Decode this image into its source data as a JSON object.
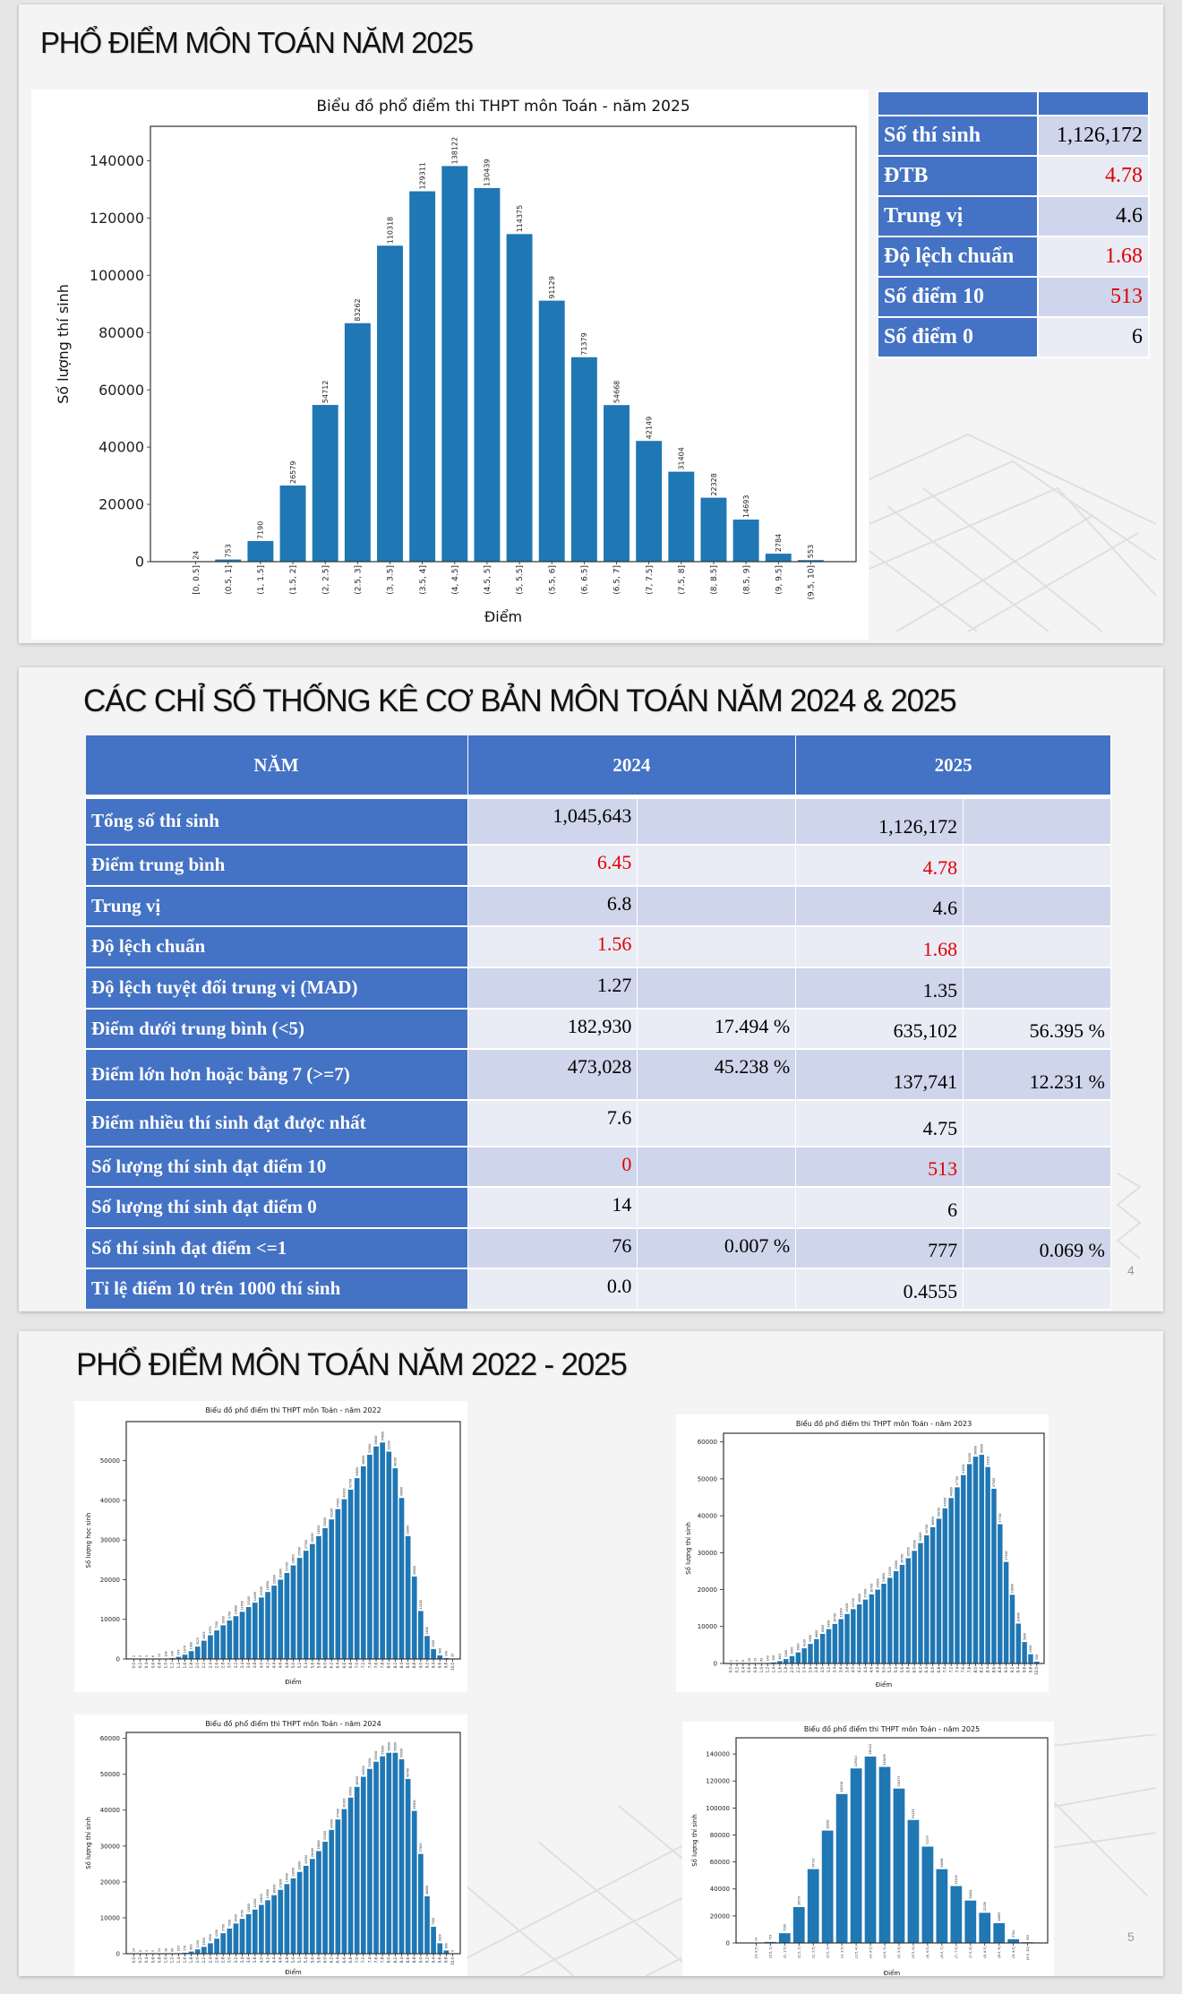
{
  "slide1": {
    "title": "PHỔ ĐIỂM MÔN TOÁN NĂM 2025",
    "stats": [
      {
        "label": "Số thí sinh",
        "value": "1,126,172",
        "highlight": false
      },
      {
        "label": "ĐTB",
        "value": "4.78",
        "highlight": true
      },
      {
        "label": "Trung vị",
        "value": "4.6",
        "highlight": false
      },
      {
        "label": "Độ lệch chuẩn",
        "value": "1.68",
        "highlight": true
      },
      {
        "label": "Số điểm 10",
        "value": "513",
        "highlight": true
      },
      {
        "label": "Số điểm 0",
        "value": "6",
        "highlight": false
      }
    ]
  },
  "slide2": {
    "title": "CÁC CHỈ SỐ THỐNG KÊ CƠ BẢN MÔN TOÁN NĂM 2024 & 2025",
    "headers": [
      "NĂM",
      "2024",
      "2025"
    ],
    "rows": [
      {
        "label": "Tổng số thí sinh",
        "v2024": "1,045,643",
        "p2024": "",
        "v2025": "1,126,172",
        "p2025": "",
        "red": false
      },
      {
        "label": "Điểm trung bình",
        "v2024": "6.45",
        "p2024": "",
        "v2025": "4.78",
        "p2025": "",
        "red": true
      },
      {
        "label": "Trung vị",
        "v2024": "6.8",
        "p2024": "",
        "v2025": "4.6",
        "p2025": "",
        "red": false
      },
      {
        "label": "Độ lệch chuẩn",
        "v2024": "1.56",
        "p2024": "",
        "v2025": "1.68",
        "p2025": "",
        "red": true
      },
      {
        "label": "Độ lệch tuyệt đối trung vị (MAD)",
        "v2024": "1.27",
        "p2024": "",
        "v2025": "1.35",
        "p2025": "",
        "red": false
      },
      {
        "label": "Điểm dưới trung bình (<5)",
        "v2024": "182,930",
        "p2024": "17.494 %",
        "v2025": "635,102",
        "p2025": "56.395 %",
        "red": false
      },
      {
        "label": "Điểm lớn hơn hoặc bằng 7 (>=7)",
        "v2024": "473,028",
        "p2024": "45.238 %",
        "v2025": "137,741",
        "p2025": "12.231 %",
        "red": false
      },
      {
        "label": "Điểm nhiều thí sinh đạt được nhất",
        "v2024": "7.6",
        "p2024": "",
        "v2025": "4.75",
        "p2025": "",
        "red": false
      },
      {
        "label": "Số lượng thí sinh đạt điểm 10",
        "v2024": "0",
        "p2024": "",
        "v2025": "513",
        "p2025": "",
        "red": true
      },
      {
        "label": "Số lượng thí sinh đạt điểm 0",
        "v2024": "14",
        "p2024": "",
        "v2025": "6",
        "p2025": "",
        "red": false
      },
      {
        "label": "Số thí sinh đạt điểm <=1",
        "v2024": "76",
        "p2024": "0.007 %",
        "v2025": "777",
        "p2025": "0.069 %",
        "red": false
      },
      {
        "label": "Tỉ lệ điểm 10 trên 1000 thí sinh",
        "v2024": "0.0",
        "p2024": "",
        "v2025": "0.4555",
        "p2025": "",
        "red": false
      }
    ],
    "page_number": "4"
  },
  "slide3": {
    "title": "PHỔ ĐIỂM MÔN TOÁN NĂM 2022 - 2025",
    "page_number": "5"
  },
  "colors": {
    "accent": "#4472c4",
    "bar": "#1f77b4",
    "red": "#e00000",
    "row_a": "#cfd5ea",
    "row_b": "#e9ebf5"
  },
  "chart_data": [
    {
      "id": "main2025",
      "type": "bar",
      "title": "Biểu đồ phổ điểm thi THPT môn Toán - năm 2025",
      "xlabel": "Điểm",
      "ylabel": "Số lượng thí sinh",
      "categories": [
        "[0, 0.5]",
        "(0.5, 1]",
        "(1, 1.5]",
        "(1.5, 2]",
        "(2, 2.5]",
        "(2.5, 3]",
        "(3, 3.5]",
        "(3.5, 4]",
        "(4, 4.5]",
        "(4.5, 5]",
        "(5, 5.5]",
        "(5.5, 6]",
        "(6, 6.5]",
        "(6.5, 7]",
        "(7, 7.5]",
        "(7.5, 8]",
        "(8, 8.5]",
        "(8.5, 9]",
        "(9, 9.5]",
        "(9.5, 10]"
      ],
      "values": [
        24,
        753,
        7190,
        26579,
        54712,
        83262,
        110318,
        129311,
        138122,
        130439,
        114375,
        91129,
        71379,
        54668,
        42149,
        31404,
        22328,
        14693,
        2784,
        553
      ],
      "yticks": [
        0,
        20000,
        40000,
        60000,
        80000,
        100000,
        120000,
        140000
      ],
      "ylim": [
        0,
        152000
      ],
      "grid": false
    },
    {
      "id": "y2022",
      "type": "bar",
      "title": "Biểu đồ phổ điểm thi THPT môn Toán - năm 2022",
      "xlabel": "Điểm",
      "ylabel": "Số lượng học sinh",
      "categories": [
        "0.0",
        "0.2",
        "0.4",
        "0.6",
        "0.8",
        "1.0",
        "1.2",
        "1.4",
        "1.6",
        "1.8",
        "2.0",
        "2.2",
        "2.4",
        "2.6",
        "2.8",
        "3.0",
        "3.2",
        "3.4",
        "3.6",
        "3.8",
        "4.0",
        "4.2",
        "4.4",
        "4.6",
        "4.8",
        "5.0",
        "5.2",
        "5.4",
        "5.6",
        "5.8",
        "6.0",
        "6.2",
        "6.4",
        "6.6",
        "6.8",
        "7.0",
        "7.2",
        "7.4",
        "7.6",
        "7.8",
        "8.0",
        "8.2",
        "8.4",
        "8.6",
        "8.8",
        "9.0",
        "9.2",
        "9.4",
        "9.6",
        "9.8",
        "10.0"
      ],
      "values": [
        1,
        3,
        3,
        6,
        12,
        109,
        240,
        549,
        1079,
        1980,
        3123,
        4603,
        5970,
        7200,
        8500,
        9700,
        10800,
        11900,
        13100,
        14200,
        15500,
        16900,
        18500,
        20000,
        21700,
        23600,
        25500,
        27300,
        29000,
        31000,
        33000,
        35200,
        37800,
        40300,
        42700,
        45600,
        48600,
        51500,
        53600,
        54600,
        52300,
        48100,
        40600,
        31000,
        20800,
        12100,
        5800,
        2500,
        900,
        240,
        35
      ],
      "yticks": [
        0,
        10000,
        20000,
        30000,
        40000,
        50000
      ],
      "ylim": [
        0,
        59870
      ],
      "grid": false
    },
    {
      "id": "y2023",
      "type": "bar",
      "title": "Biểu đồ phổ điểm thi THPT môn Toán - năm 2023",
      "xlabel": "Điểm",
      "ylabel": "Số lượng thí sinh",
      "categories": [
        "0.0",
        "0.2",
        "0.4",
        "0.6",
        "0.8",
        "1.0",
        "1.2",
        "1.4",
        "1.6",
        "1.8",
        "2.0",
        "2.2",
        "2.4",
        "2.6",
        "2.8",
        "3.0",
        "3.2",
        "3.4",
        "3.6",
        "3.8",
        "4.0",
        "4.2",
        "4.4",
        "4.6",
        "4.8",
        "5.0",
        "5.2",
        "5.4",
        "5.6",
        "5.8",
        "6.0",
        "6.2",
        "6.4",
        "6.6",
        "6.8",
        "7.0",
        "7.2",
        "7.4",
        "7.6",
        "7.8",
        "8.0",
        "8.2",
        "8.4",
        "8.6",
        "8.8",
        "9.0",
        "9.2",
        "9.4",
        "9.6",
        "9.8",
        "10.0"
      ],
      "values": [
        1,
        4,
        8,
        20,
        33,
        60,
        140,
        300,
        640,
        1200,
        2000,
        3000,
        4100,
        5300,
        6600,
        8000,
        9300,
        10700,
        12000,
        13400,
        14700,
        16000,
        17300,
        18700,
        20000,
        21600,
        23200,
        25000,
        26700,
        28500,
        30500,
        32600,
        34700,
        36900,
        39200,
        42000,
        44800,
        47700,
        51000,
        54000,
        56000,
        56500,
        53200,
        47300,
        37700,
        27500,
        18600,
        10800,
        5800,
        2500,
        500
      ],
      "yticks": [
        0,
        10000,
        20000,
        30000,
        40000,
        50000,
        60000
      ],
      "ylim": [
        0,
        62340
      ],
      "grid": false
    },
    {
      "id": "y2024",
      "type": "bar",
      "title": "Biểu đồ phổ điểm thi THPT môn Toán - năm 2024",
      "xlabel": "Điểm",
      "ylabel": "Số lượng thí sinh",
      "categories": [
        "0.0",
        "0.2",
        "0.4",
        "0.6",
        "0.8",
        "1.0",
        "1.2",
        "1.4",
        "1.6",
        "1.8",
        "2.0",
        "2.2",
        "2.4",
        "2.6",
        "2.8",
        "3.0",
        "3.2",
        "3.4",
        "3.6",
        "3.8",
        "4.0",
        "4.2",
        "4.4",
        "4.6",
        "4.8",
        "5.0",
        "5.2",
        "5.4",
        "5.6",
        "5.8",
        "6.0",
        "6.2",
        "6.4",
        "6.6",
        "6.8",
        "7.0",
        "7.2",
        "7.4",
        "7.6",
        "7.8",
        "8.0",
        "8.2",
        "8.4",
        "8.6",
        "8.8",
        "9.0",
        "9.2",
        "9.4",
        "9.6",
        "9.8",
        "10.0"
      ],
      "values": [
        14,
        0,
        3,
        5,
        12,
        30,
        60,
        130,
        270,
        600,
        1200,
        1900,
        2900,
        4200,
        5700,
        7000,
        8400,
        9700,
        11000,
        12300,
        13600,
        14900,
        16300,
        17800,
        19400,
        21000,
        22800,
        24500,
        26400,
        28600,
        31200,
        34500,
        37400,
        40300,
        43500,
        46500,
        49300,
        51500,
        53500,
        55000,
        56000,
        56000,
        54200,
        48700,
        39800,
        27800,
        16000,
        7500,
        2900,
        900,
        0
      ],
      "yticks": [
        0,
        10000,
        20000,
        30000,
        40000,
        50000,
        60000
      ],
      "ylim": [
        0,
        61670
      ],
      "grid": false
    },
    {
      "id": "small2025",
      "type": "bar",
      "title": "Biểu đồ phổ điểm thi THPT môn Toán - năm 2025",
      "xlabel": "Điểm",
      "ylabel": "Số lượng thí sinh",
      "categories": [
        "[0, 0.5]",
        "(0.5, 1]",
        "(1, 1.5]",
        "(1.5, 2]",
        "(2, 2.5]",
        "(2.5, 3]",
        "(3, 3.5]",
        "(3.5, 4]",
        "(4, 4.5]",
        "(4.5, 5]",
        "(5, 5.5]",
        "(5.5, 6]",
        "(6, 6.5]",
        "(6.5, 7]",
        "(7, 7.5]",
        "(7.5, 8]",
        "(8, 8.5]",
        "(8.5, 9]",
        "(9, 9.5]",
        "(9.5, 10]"
      ],
      "values": [
        24,
        753,
        7190,
        26579,
        54712,
        83262,
        110318,
        129311,
        138122,
        130439,
        114375,
        91129,
        71379,
        54668,
        42149,
        31404,
        22328,
        14693,
        2784,
        553
      ],
      "yticks": [
        0,
        20000,
        40000,
        60000,
        80000,
        100000,
        120000,
        140000
      ],
      "ylim": [
        0,
        152000
      ],
      "grid": false
    }
  ]
}
